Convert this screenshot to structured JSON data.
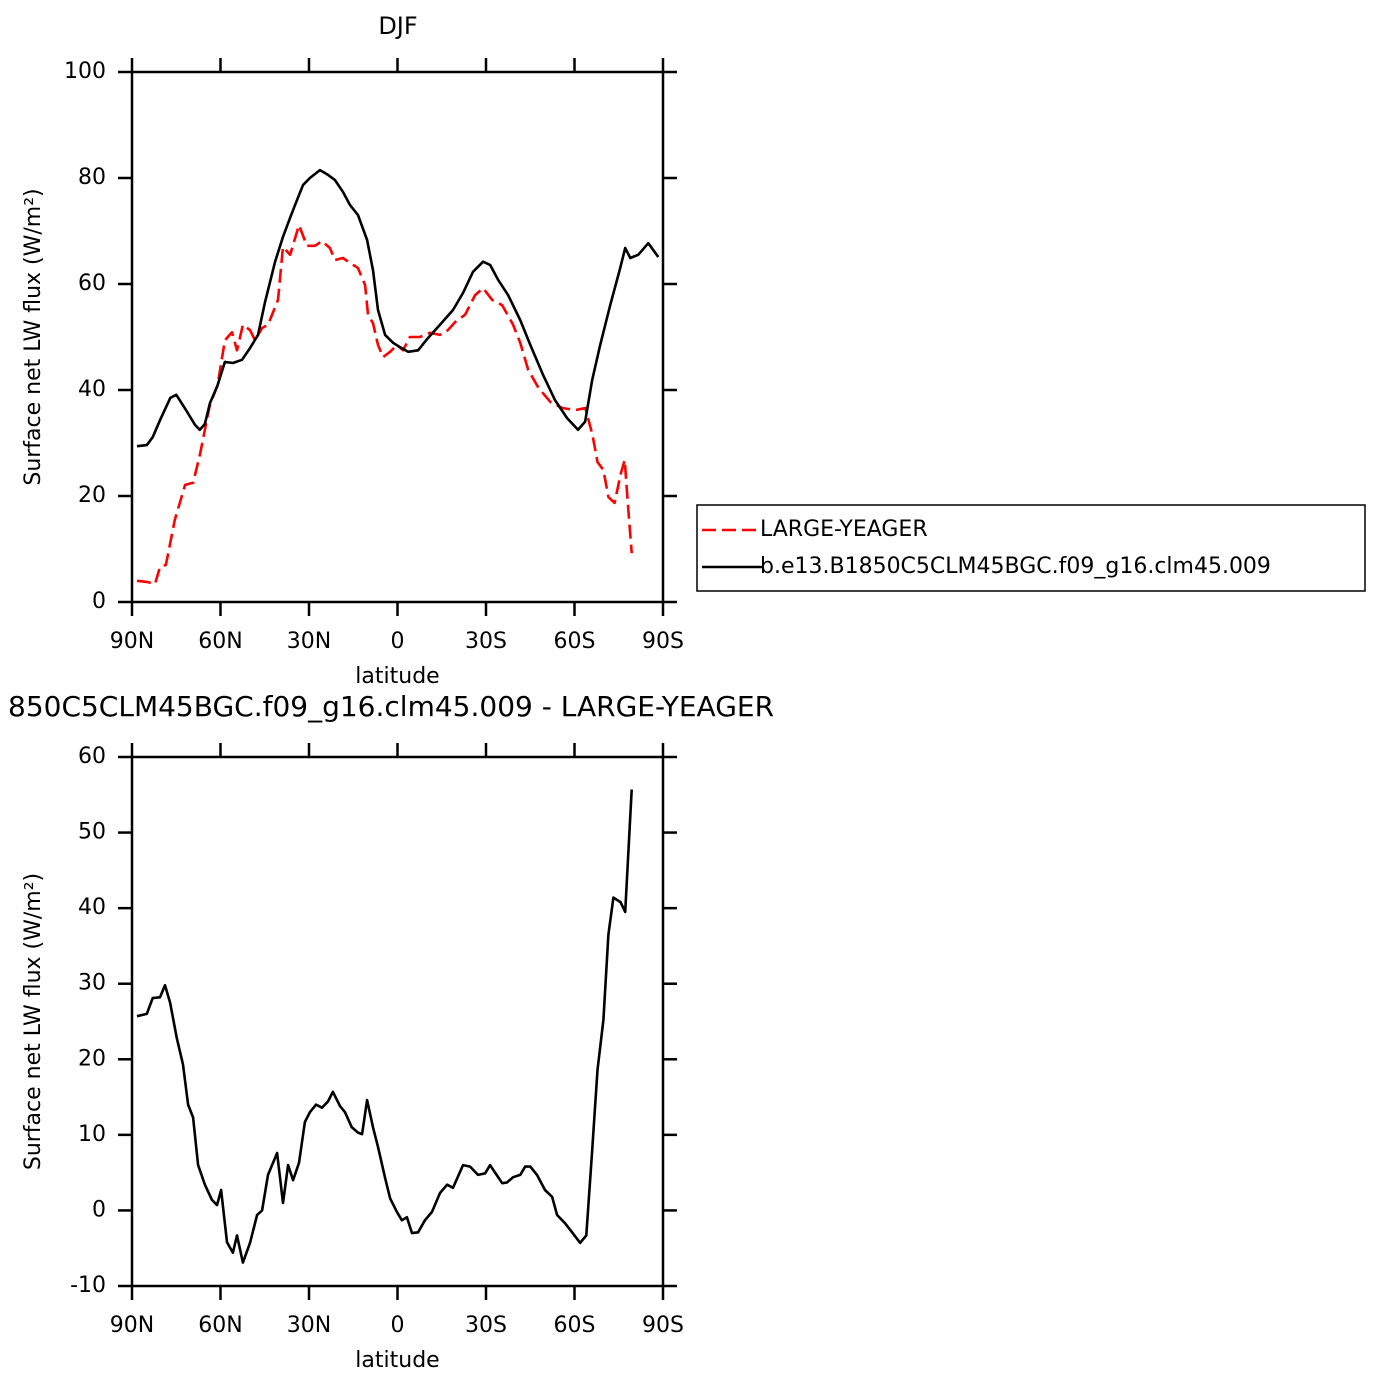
{
  "chart_data": [
    {
      "type": "line",
      "title": "DJF",
      "xlabel": "latitude",
      "ylabel": "Surface net LW flux (W/m²)",
      "xlim": [
        90,
        -90
      ],
      "ylim": [
        0,
        100
      ],
      "xticks": [
        {
          "value": 90,
          "label": "90N"
        },
        {
          "value": 60,
          "label": "60N"
        },
        {
          "value": 30,
          "label": "30N"
        },
        0,
        {
          "value": -30,
          "label": "30S"
        },
        {
          "value": -60,
          "label": "60S"
        },
        {
          "value": -90,
          "label": "90S"
        }
      ],
      "yticks": [
        0,
        20,
        40,
        60,
        80,
        100
      ],
      "legend": "right",
      "series": [
        {
          "name": "LARGE-YEAGER",
          "color": "#ff0000",
          "dash": true,
          "x": [
            88.3,
            85,
            82.2,
            80.5,
            78.5,
            75.5,
            72,
            69.3,
            67,
            63.6,
            61,
            58.5,
            56.1,
            54.4,
            52.4,
            50,
            48.3,
            45.9,
            43.9,
            40.5,
            38.8,
            36.4,
            33.4,
            30.7,
            28,
            25.6,
            22.9,
            21.2,
            18.5,
            16.1,
            13.4,
            11,
            10,
            8.3,
            6.6,
            4.9,
            2.5,
            0.2,
            -1.9,
            -4.2,
            -7.6,
            -11,
            -14.4,
            -17.1,
            -19.5,
            -22.9,
            -26.3,
            -29,
            -32.1,
            -35.5,
            -39.2,
            -41.6,
            -44.3,
            -47.8,
            -51.9,
            -55.9,
            -60.3,
            -63.7,
            -66.1,
            -67.8,
            -69.8,
            -71.5,
            -73.6,
            -75.6,
            -77,
            -78,
            -79.4
          ],
          "values": [
            4,
            3.8,
            3.4,
            6.6,
            7,
            15.5,
            22.1,
            22.5,
            27.7,
            37.2,
            40.9,
            49.4,
            50.9,
            47.5,
            52.3,
            51.3,
            49.4,
            51.7,
            52.3,
            57,
            67,
            65.5,
            71.1,
            67.2,
            67.2,
            68.1,
            66.8,
            64.5,
            64.9,
            64,
            63,
            59.8,
            54.2,
            52.6,
            48.5,
            46.2,
            47.2,
            48.5,
            47.5,
            50,
            50,
            50.8,
            50.4,
            51.3,
            52.8,
            54.2,
            57.9,
            59.2,
            57,
            56,
            52.3,
            48.9,
            43.8,
            40.4,
            37.7,
            36.6,
            36.2,
            36.6,
            31.5,
            26.4,
            24.9,
            19.8,
            18.7,
            24,
            26.8,
            19.2,
            9.2
          ]
        },
        {
          "name": "b.e13.B1850C5CLM45BGC.f09_g16.clm45.009",
          "color": "#000000",
          "dash": false,
          "x": [
            88.3,
            85,
            83,
            80.5,
            77,
            75,
            71.7,
            68.6,
            67,
            65.3,
            63.6,
            61,
            58.5,
            55.8,
            52.7,
            50,
            47.3,
            45,
            41.5,
            38.8,
            36.4,
            34.1,
            32,
            29.7,
            26.3,
            23.6,
            21.2,
            18.5,
            16.1,
            13.4,
            10.3,
            8.3,
            6.6,
            4.2,
            1.5,
            -0.8,
            -3.6,
            -7,
            -10.3,
            -14.4,
            -18.8,
            -22.2,
            -25.6,
            -29,
            -31.4,
            -34.1,
            -37.5,
            -41.6,
            -45,
            -49.4,
            -53.4,
            -57.5,
            -61.2,
            -63.6,
            -66,
            -68.7,
            -72.1,
            -75.5,
            -77.2,
            -78.9,
            -81.6,
            -85,
            -88.4
          ],
          "values": [
            29.4,
            29.6,
            31.1,
            34.3,
            38.5,
            39.1,
            36.2,
            33.4,
            32.5,
            33.6,
            37.5,
            40.9,
            45.3,
            45.1,
            45.7,
            47.9,
            50.4,
            56.4,
            64.2,
            68.9,
            72.5,
            75.8,
            78.7,
            80,
            81.5,
            80.6,
            79.6,
            77.4,
            74.9,
            73,
            68.3,
            62.6,
            55.1,
            50.4,
            48.9,
            48.1,
            47.2,
            47.5,
            49.8,
            52.3,
            55.1,
            58.3,
            62.3,
            64.2,
            63.6,
            60.8,
            57.9,
            53.2,
            48.5,
            42.8,
            38.1,
            34.7,
            32.5,
            34,
            41.9,
            48.5,
            56,
            63,
            66.8,
            64.9,
            65.5,
            67.7,
            65.1
          ]
        }
      ]
    },
    {
      "type": "line",
      "title": "850C5CLM45BGC.f09_g16.clm45.009 - LARGE-YEAGER",
      "xlabel": "latitude",
      "ylabel": "Surface net LW flux (W/m²)",
      "xlim": [
        90,
        -90
      ],
      "ylim": [
        -10,
        60
      ],
      "xticks": [
        {
          "value": 90,
          "label": "90N"
        },
        {
          "value": 60,
          "label": "60N"
        },
        {
          "value": 30,
          "label": "30N"
        },
        0,
        {
          "value": -30,
          "label": "30S"
        },
        {
          "value": -60,
          "label": "60S"
        },
        {
          "value": -90,
          "label": "90S"
        }
      ],
      "yticks": [
        -10,
        0,
        10,
        20,
        30,
        40,
        50,
        60
      ],
      "series": [
        {
          "color": "#000000",
          "dash": false,
          "x": [
            88.3,
            85,
            83,
            80.5,
            78.8,
            77.1,
            74.8,
            72.7,
            71,
            69.3,
            67.6,
            65.3,
            62.9,
            61.2,
            59.8,
            57.8,
            55.8,
            54.4,
            52.4,
            50,
            47.6,
            45.9,
            43.9,
            40.8,
            38.8,
            37.1,
            35.4,
            33.4,
            31.4,
            29.7,
            27.6,
            25.6,
            23.6,
            21.9,
            19.5,
            17.8,
            15.5,
            13.4,
            12,
            10.3,
            8.3,
            6.6,
            4.2,
            2.5,
            0.2,
            -1.5,
            -3.2,
            -4.9,
            -7,
            -9.3,
            -11.7,
            -14.4,
            -16.8,
            -18.8,
            -22.2,
            -24.6,
            -27.3,
            -29.7,
            -31.4,
            -33.1,
            -35.5,
            -37.1,
            -39.2,
            -41.6,
            -43.3,
            -45,
            -47.3,
            -50,
            -52.4,
            -54.1,
            -56.8,
            -59.2,
            -61.9,
            -64,
            -66,
            -67.8,
            -69.8,
            -71.5,
            -73.2,
            -75.6,
            -77.2,
            -79.4
          ],
          "values": [
            25.7,
            26,
            28.1,
            28.2,
            29.8,
            27.5,
            22.8,
            19.3,
            14,
            12.3,
            6,
            3.4,
            1.4,
            0.7,
            2.7,
            -4.2,
            -5.6,
            -3.3,
            -6.9,
            -4.3,
            -0.6,
            0,
            4.7,
            7.6,
            1,
            6,
            4,
            6.3,
            11.7,
            13,
            14,
            13.6,
            14.4,
            15.7,
            13.8,
            13,
            11,
            10.3,
            10.1,
            14.6,
            11,
            8.4,
            4.3,
            1.6,
            -0.2,
            -1.3,
            -0.9,
            -3,
            -2.9,
            -1.3,
            -0.2,
            2.3,
            3.4,
            3,
            6,
            5.8,
            4.7,
            4.9,
            6,
            5,
            3.6,
            3.7,
            4.4,
            4.7,
            5.8,
            5.8,
            4.7,
            2.7,
            1.8,
            -0.6,
            -1.7,
            -2.9,
            -4.3,
            -3.3,
            8,
            18.6,
            25.2,
            36.5,
            41.4,
            40.8,
            39.5,
            55.7
          ]
        }
      ]
    }
  ]
}
